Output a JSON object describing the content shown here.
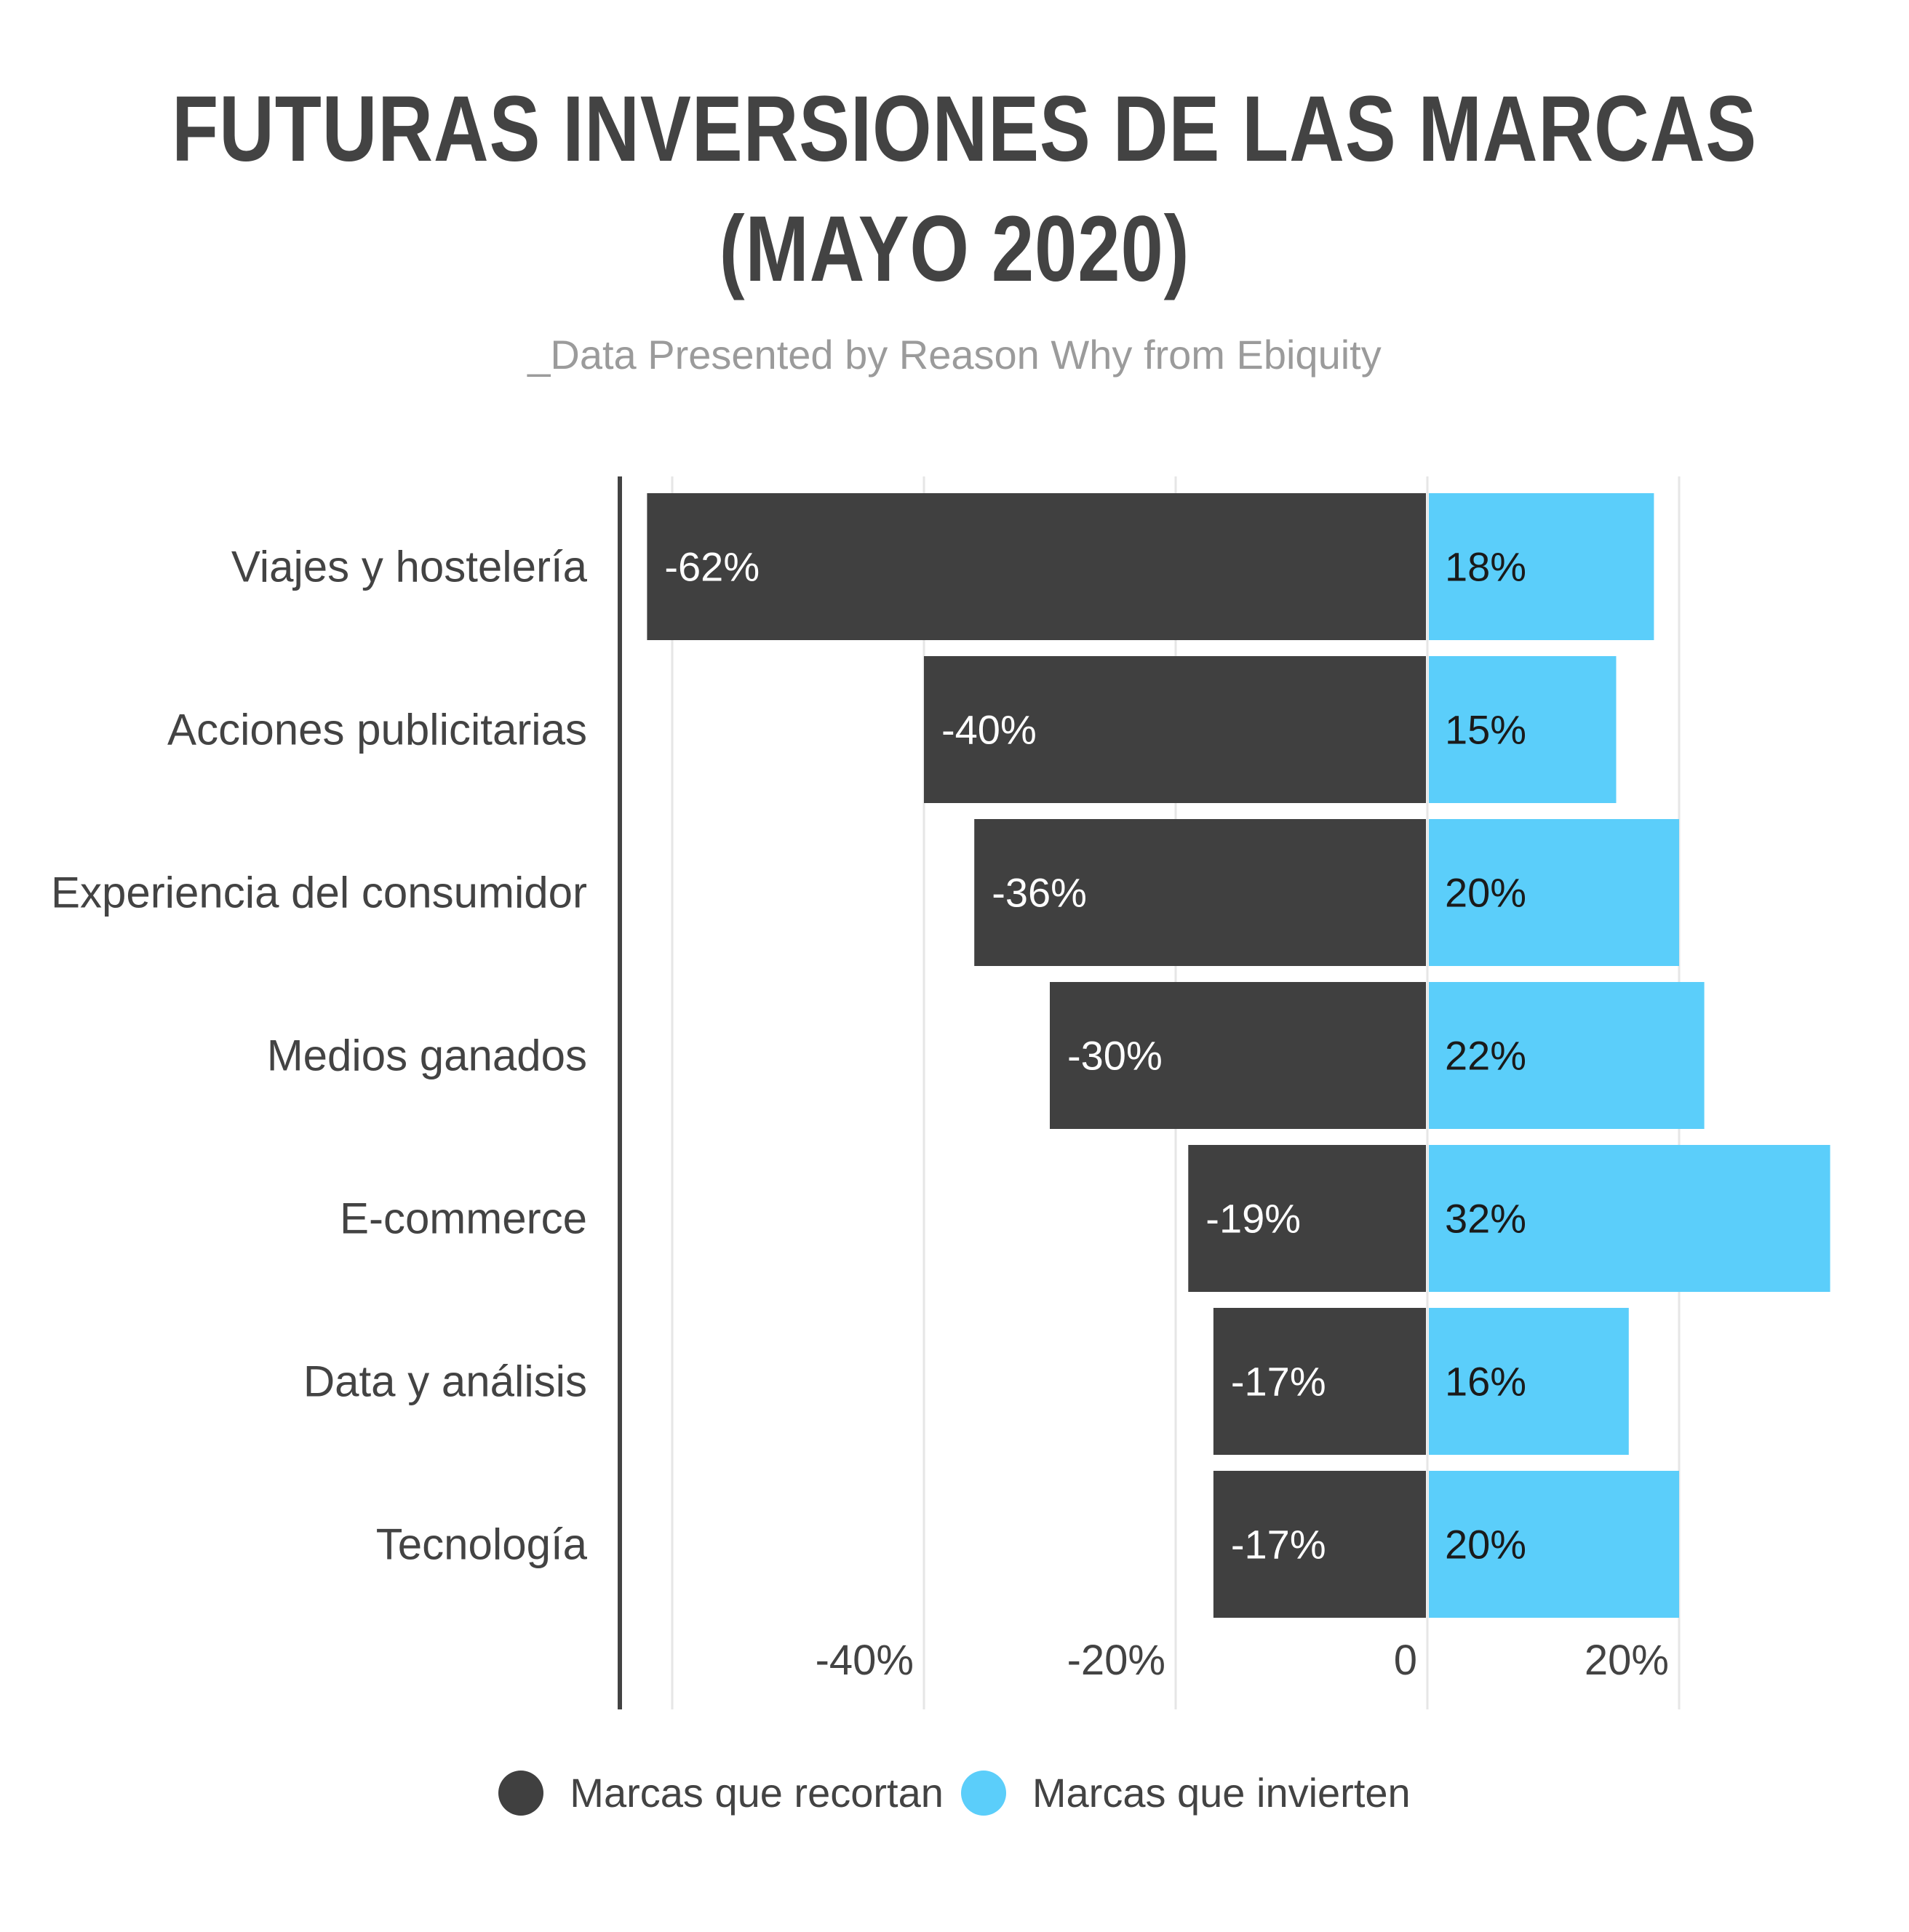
{
  "header": {
    "title_line1": "FUTURAS INVERSIONES DE LAS MARCAS",
    "title_line2": "(MAYO 2020)",
    "subtitle": "_Data Presented by Reason Why from Ebiquity"
  },
  "legend": {
    "cut_label": "Marcas que recortan",
    "invest_label": "Marcas que invierten"
  },
  "colors": {
    "cut": "#404040",
    "invest": "#5bcefa",
    "text": "#434343",
    "grid": "#e6e6e6"
  },
  "chart_data": {
    "type": "bar",
    "orientation": "horizontal",
    "stacked": "diverging",
    "categories": [
      "Viajes y hostelería",
      "Acciones publicitarias",
      "Experiencia del consumidor",
      "Medios ganados",
      "E-commerce",
      "Data y análisis",
      "Tecnología"
    ],
    "series": [
      {
        "name": "Marcas que recortan",
        "values": [
          -62,
          -40,
          -36,
          -30,
          -19,
          -17,
          -17
        ],
        "labels": [
          "-62%",
          "-40%",
          "-36%",
          "-30%",
          "-19%",
          "-17%",
          "-17%"
        ]
      },
      {
        "name": "Marcas que invierten",
        "values": [
          18,
          15,
          20,
          22,
          32,
          16,
          20
        ],
        "labels": [
          "18%",
          "15%",
          "20%",
          "22%",
          "32%",
          "16%",
          "20%"
        ]
      }
    ],
    "xlim": [
      -64,
      33
    ],
    "xticks": [
      -40,
      -20,
      0,
      20
    ],
    "xtick_labels": [
      "-40%",
      "-20%",
      "0",
      "20%"
    ],
    "title": "FUTURAS INVERSIONES DE LAS MARCAS (MAYO 2020)",
    "subtitle": "_Data Presented by Reason Why from Ebiquity",
    "grid": true,
    "legend_position": "bottom"
  }
}
